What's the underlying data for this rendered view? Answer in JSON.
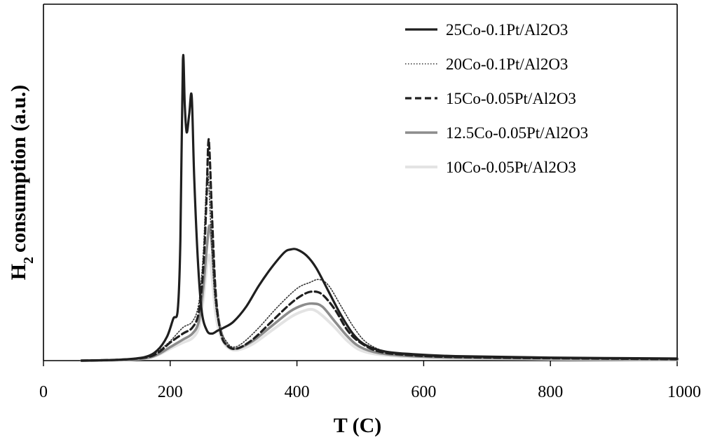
{
  "chart_data": {
    "type": "line",
    "xlabel": "T (C)",
    "ylabel": "consumption (a.u.)",
    "ylabel_prefix": "H",
    "ylabel_subscript": "2",
    "xlim": [
      0,
      1000
    ],
    "ylim": [
      0,
      100
    ],
    "xticks": [
      "0",
      "200",
      "400",
      "600",
      "800",
      "1000"
    ],
    "grid": false,
    "legend_position": "top-right",
    "series": [
      {
        "name": "25Co-0.1Pt/Al2O3",
        "color": "#1f1f1f",
        "style": "solid",
        "points": [
          [
            60,
            0
          ],
          [
            120,
            0.3
          ],
          [
            160,
            1.2
          ],
          [
            180,
            3.5
          ],
          [
            195,
            8
          ],
          [
            205,
            14
          ],
          [
            212,
            17
          ],
          [
            216,
            40
          ],
          [
            220,
            100
          ],
          [
            223,
            85
          ],
          [
            226,
            76
          ],
          [
            230,
            82
          ],
          [
            234,
            88
          ],
          [
            238,
            60
          ],
          [
            244,
            32
          ],
          [
            250,
            16
          ],
          [
            258,
            10
          ],
          [
            266,
            9
          ],
          [
            275,
            10
          ],
          [
            285,
            11
          ],
          [
            300,
            13
          ],
          [
            320,
            18
          ],
          [
            340,
            25
          ],
          [
            360,
            31
          ],
          [
            380,
            36
          ],
          [
            390,
            37
          ],
          [
            400,
            37
          ],
          [
            415,
            35
          ],
          [
            430,
            31
          ],
          [
            450,
            23
          ],
          [
            470,
            15
          ],
          [
            490,
            8.5
          ],
          [
            510,
            5
          ],
          [
            540,
            3
          ],
          [
            580,
            2.2
          ],
          [
            650,
            1.5
          ],
          [
            800,
            1
          ],
          [
            1000,
            0.7
          ]
        ]
      },
      {
        "name": "20Co-0.1Pt/Al2O3",
        "color": "#333333",
        "style": "dotted",
        "points": [
          [
            60,
            0
          ],
          [
            120,
            0.3
          ],
          [
            160,
            1
          ],
          [
            180,
            3
          ],
          [
            200,
            6.5
          ],
          [
            220,
            11
          ],
          [
            235,
            13
          ],
          [
            245,
            19
          ],
          [
            252,
            35
          ],
          [
            257,
            58
          ],
          [
            260,
            62
          ],
          [
            264,
            45
          ],
          [
            270,
            22
          ],
          [
            278,
            11
          ],
          [
            290,
            6
          ],
          [
            300,
            4.5
          ],
          [
            315,
            6
          ],
          [
            340,
            11
          ],
          [
            370,
            18
          ],
          [
            400,
            24
          ],
          [
            420,
            26
          ],
          [
            435,
            27
          ],
          [
            450,
            25
          ],
          [
            470,
            18
          ],
          [
            490,
            11
          ],
          [
            510,
            6
          ],
          [
            540,
            3
          ],
          [
            580,
            1.8
          ],
          [
            650,
            1.2
          ],
          [
            800,
            0.9
          ],
          [
            1000,
            0.6
          ]
        ]
      },
      {
        "name": "15Co-0.05Pt/Al2O3",
        "color": "#1f1f1f",
        "style": "dashed",
        "points": [
          [
            60,
            0
          ],
          [
            120,
            0.3
          ],
          [
            160,
            1
          ],
          [
            180,
            2.5
          ],
          [
            200,
            6
          ],
          [
            220,
            9
          ],
          [
            235,
            11
          ],
          [
            245,
            16
          ],
          [
            252,
            30
          ],
          [
            257,
            52
          ],
          [
            260,
            72
          ],
          [
            262,
            70
          ],
          [
            266,
            48
          ],
          [
            272,
            22
          ],
          [
            280,
            9
          ],
          [
            290,
            5
          ],
          [
            305,
            4
          ],
          [
            330,
            7
          ],
          [
            360,
            13
          ],
          [
            390,
            19
          ],
          [
            410,
            22
          ],
          [
            425,
            23
          ],
          [
            440,
            22
          ],
          [
            460,
            17
          ],
          [
            480,
            10
          ],
          [
            500,
            6
          ],
          [
            530,
            3
          ],
          [
            580,
            1.8
          ],
          [
            650,
            1.2
          ],
          [
            800,
            0.8
          ],
          [
            1000,
            0.5
          ]
        ]
      },
      {
        "name": "12.5Co-0.05Pt/Al2O3",
        "color": "#8c8c8c",
        "style": "solid",
        "points": [
          [
            60,
            0
          ],
          [
            120,
            0.2
          ],
          [
            160,
            0.8
          ],
          [
            180,
            2
          ],
          [
            200,
            4.5
          ],
          [
            220,
            7
          ],
          [
            235,
            9
          ],
          [
            245,
            13
          ],
          [
            252,
            24
          ],
          [
            258,
            38
          ],
          [
            262,
            45
          ],
          [
            266,
            38
          ],
          [
            272,
            20
          ],
          [
            280,
            10
          ],
          [
            290,
            5
          ],
          [
            305,
            4
          ],
          [
            330,
            6.5
          ],
          [
            360,
            11.5
          ],
          [
            390,
            16.5
          ],
          [
            410,
            18.5
          ],
          [
            425,
            19
          ],
          [
            440,
            18
          ],
          [
            460,
            13
          ],
          [
            480,
            8
          ],
          [
            500,
            4.5
          ],
          [
            530,
            2.5
          ],
          [
            580,
            1.5
          ],
          [
            650,
            1
          ],
          [
            800,
            0.7
          ],
          [
            1000,
            0.4
          ]
        ]
      },
      {
        "name": "10Co-0.05Pt/Al2O3",
        "color": "#e3e3e3",
        "style": "solid",
        "points": [
          [
            60,
            0
          ],
          [
            120,
            0.2
          ],
          [
            160,
            0.7
          ],
          [
            180,
            1.8
          ],
          [
            200,
            4
          ],
          [
            220,
            6
          ],
          [
            235,
            7.5
          ],
          [
            245,
            11
          ],
          [
            252,
            20
          ],
          [
            258,
            32
          ],
          [
            262,
            35
          ],
          [
            266,
            28
          ],
          [
            272,
            15
          ],
          [
            280,
            8
          ],
          [
            290,
            4.5
          ],
          [
            305,
            3.5
          ],
          [
            330,
            5.5
          ],
          [
            360,
            10
          ],
          [
            390,
            14.5
          ],
          [
            410,
            16.5
          ],
          [
            425,
            17
          ],
          [
            440,
            15
          ],
          [
            460,
            11
          ],
          [
            480,
            6.5
          ],
          [
            500,
            3.5
          ],
          [
            530,
            2
          ],
          [
            580,
            1.2
          ],
          [
            650,
            0.8
          ],
          [
            800,
            0.5
          ],
          [
            1000,
            0.3
          ]
        ]
      }
    ]
  }
}
